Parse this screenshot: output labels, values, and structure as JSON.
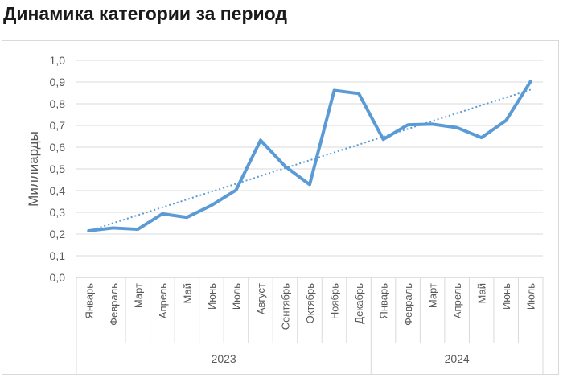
{
  "page": {
    "title": "Динамика категории за период"
  },
  "chart_data": {
    "type": "line",
    "title": "Динамика категории за период",
    "xlabel": "",
    "ylabel": "Миллиарды",
    "ylim": [
      0,
      1.0
    ],
    "y_ticks": [
      "0,0",
      "0,1",
      "0,2",
      "0,3",
      "0,4",
      "0,5",
      "0,6",
      "0,7",
      "0,8",
      "0,9",
      "1,0"
    ],
    "categories": [
      "Январь",
      "Февраль",
      "Март",
      "Апрель",
      "Май",
      "Июнь",
      "Июль",
      "Август",
      "Сентябрь",
      "Октябрь",
      "Ноябрь",
      "Декабрь",
      "Январь",
      "Февраль",
      "Март",
      "Апрель",
      "Май",
      "Июнь",
      "Июль"
    ],
    "year_groups": [
      {
        "label": "2023",
        "count": 12
      },
      {
        "label": "2024",
        "count": 7
      }
    ],
    "series": [
      {
        "values": [
          0.215,
          0.228,
          0.222,
          0.293,
          0.277,
          0.332,
          0.402,
          0.632,
          0.512,
          0.428,
          0.861,
          0.847,
          0.636,
          0.703,
          0.706,
          0.69,
          0.644,
          0.723,
          0.903
        ],
        "color": "#5B9BD5"
      }
    ],
    "trendline": {
      "type": "linear",
      "style": "dotted",
      "color": "#5B9BD5"
    },
    "grid": true,
    "legend": "none"
  }
}
